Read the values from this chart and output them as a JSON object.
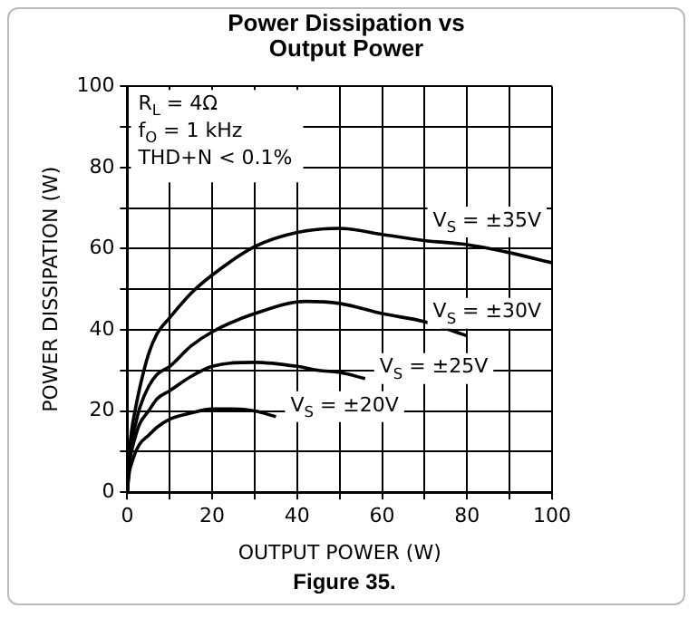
{
  "chart_data": {
    "type": "line",
    "title": "Power Dissipation vs Output Power",
    "xlabel": "OUTPUT POWER (W)",
    "ylabel": "POWER DISSIPATION (W)",
    "xlim": [
      0,
      100
    ],
    "ylim": [
      0,
      100
    ],
    "xticks": [
      0,
      {
        "value": 10,
        "label": null
      },
      20,
      {
        "value": 30,
        "label": null
      },
      40,
      {
        "value": 50,
        "label": null
      },
      60,
      {
        "value": 70,
        "label": null
      },
      80,
      {
        "value": 90,
        "label": null
      },
      100
    ],
    "yticks": [
      0,
      {
        "value": 10,
        "label": null
      },
      20,
      {
        "value": 30,
        "label": null
      },
      40,
      {
        "value": 50,
        "label": null
      },
      60,
      {
        "value": 70,
        "label": null
      },
      80,
      {
        "value": 90,
        "label": null
      },
      100
    ],
    "grid": true,
    "legend": false,
    "marker": "none",
    "line_style": "solid",
    "series": [
      {
        "name": "V$_{S}$ = ±35V",
        "color": "#000000",
        "x": [
          0,
          0.5,
          1,
          2,
          3,
          5,
          7,
          10,
          15,
          20,
          30,
          40,
          50,
          60,
          70,
          80,
          90,
          100
        ],
        "values": [
          0,
          10,
          15,
          21,
          26,
          34,
          39,
          43,
          49,
          53.5,
          60.5,
          64,
          65,
          63.5,
          62,
          61,
          59,
          56.5
        ]
      },
      {
        "name": "V$_{S}$ = ±30V",
        "color": "#000000",
        "x": [
          0,
          0.5,
          1,
          2,
          3,
          5,
          7,
          10,
          15,
          20,
          30,
          42,
          50,
          60,
          70,
          80
        ],
        "values": [
          0,
          8,
          12,
          17,
          21,
          26,
          29,
          31,
          36,
          39.5,
          44,
          47,
          46.5,
          44,
          42,
          38.5
        ]
      },
      {
        "name": "V$_{S}$ = ±25V",
        "color": "#000000",
        "x": [
          0,
          0.5,
          1,
          2,
          3,
          5,
          7,
          10,
          15,
          20,
          30,
          40,
          45,
          50,
          56
        ],
        "values": [
          0,
          7,
          10,
          14,
          17,
          20,
          23,
          25,
          28.5,
          31,
          32,
          31,
          30,
          29.5,
          28
        ]
      },
      {
        "name": "V$_{S}$ = ±20V",
        "color": "#000000",
        "x": [
          0,
          0.5,
          1,
          2,
          3,
          5,
          7,
          10,
          15,
          20,
          25,
          30,
          35
        ],
        "values": [
          0,
          5,
          7,
          10,
          12,
          14,
          16,
          18,
          19.5,
          20.5,
          20.5,
          20,
          18.6
        ]
      }
    ],
    "annotations": [
      "R$_{L}$ = 4Ω",
      "f$_{O}$ = 1 kHz",
      "THD+N < 0.1%",
      "Figure 35."
    ]
  }
}
